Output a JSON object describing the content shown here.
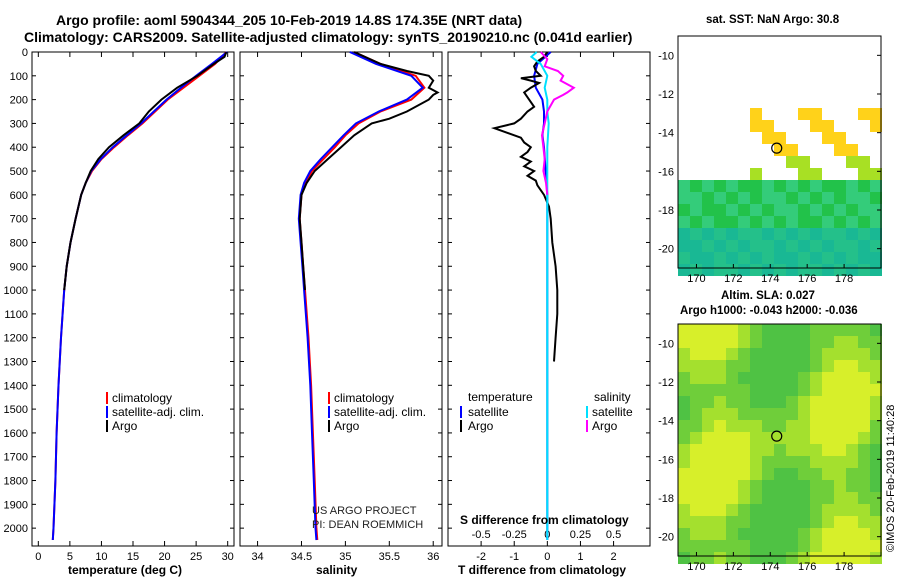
{
  "header": {
    "line1": "Argo profile: aoml 5904344_205 10-Feb-2019 14.8S 174.35E (NRT data)",
    "line2": "Climatology: CARS2009. Satellite-adjusted climatology: synTS_20190210.nc (0.041d earlier)"
  },
  "colors": {
    "climatology": "#ff0000",
    "satellite": "#0000ff",
    "argo": "#000000",
    "salinity_satellite": "#00e0ff",
    "salinity_argo": "#ff00ff"
  },
  "chart_data": [
    {
      "type": "line",
      "panel": "temperature",
      "xlabel": "temperature (deg C)",
      "ylabel": "",
      "xlim": [
        -1,
        31
      ],
      "ylim": [
        2075,
        0
      ],
      "xticks": [
        0,
        5,
        10,
        15,
        20,
        25,
        30
      ],
      "yticks": [
        0,
        100,
        200,
        300,
        400,
        500,
        600,
        700,
        800,
        900,
        1000,
        1100,
        1200,
        1300,
        1400,
        1500,
        1600,
        1700,
        1800,
        1900,
        2000
      ],
      "legend": [
        "climatology",
        "satellite-adj. clim.",
        "Argo"
      ],
      "series": [
        {
          "name": "climatology",
          "color": "#ff0000",
          "depth": [
            0,
            50,
            100,
            150,
            200,
            250,
            300,
            350,
            400,
            450,
            500,
            550,
            600,
            700,
            800,
            900,
            1000,
            1200,
            1400,
            1600,
            1800,
            2000,
            2050
          ],
          "values": [
            29.8,
            28.0,
            25.5,
            23.0,
            20.5,
            18.5,
            16.5,
            14.2,
            12.0,
            10.0,
            8.5,
            7.5,
            6.8,
            5.9,
            5.1,
            4.5,
            4.1,
            3.6,
            3.2,
            2.9,
            2.7,
            2.4,
            2.3
          ]
        },
        {
          "name": "satellite-adj. clim.",
          "color": "#0000ff",
          "depth": [
            0,
            50,
            100,
            150,
            200,
            250,
            300,
            350,
            400,
            450,
            500,
            550,
            600,
            700,
            800,
            900,
            1000,
            1200,
            1400,
            1600,
            1800,
            2000,
            2050
          ],
          "values": [
            29.9,
            27.5,
            25.0,
            22.6,
            20.3,
            18.3,
            16.3,
            14.0,
            11.8,
            9.9,
            8.4,
            7.5,
            6.8,
            5.9,
            5.1,
            4.5,
            4.1,
            3.6,
            3.2,
            2.9,
            2.7,
            2.4,
            2.3
          ]
        },
        {
          "name": "Argo",
          "color": "#000000",
          "depth": [
            0,
            20,
            50,
            100,
            150,
            200,
            250,
            300,
            350,
            400,
            450,
            500,
            550,
            600,
            700,
            800,
            900,
            1000
          ],
          "values": [
            29.8,
            29.5,
            27.8,
            25.2,
            22.0,
            19.5,
            17.5,
            16.0,
            13.5,
            11.2,
            9.5,
            8.3,
            7.5,
            6.8,
            5.9,
            5.1,
            4.5,
            4.1
          ]
        }
      ]
    },
    {
      "type": "line",
      "panel": "salinity",
      "xlabel": "salinity",
      "ylabel": "",
      "xlim": [
        33.8,
        36.1
      ],
      "ylim": [
        2075,
        0
      ],
      "xticks": [
        34,
        34.5,
        35,
        35.5,
        36
      ],
      "xticklabels": [
        "34",
        "34.5",
        "35",
        "35.5",
        "36"
      ],
      "legend": [
        "climatology",
        "satellite-adj. clim.",
        "Argo"
      ],
      "annotations": [
        "US ARGO PROJECT",
        "PI: DEAN ROEMMICH"
      ],
      "series": [
        {
          "name": "climatology",
          "color": "#ff0000",
          "depth": [
            0,
            50,
            100,
            150,
            200,
            250,
            300,
            350,
            400,
            450,
            500,
            550,
            600,
            700,
            800,
            900,
            1000,
            1200,
            1400,
            1600,
            1800,
            2000,
            2050
          ],
          "values": [
            35.1,
            35.4,
            35.8,
            35.9,
            35.75,
            35.4,
            35.15,
            35.0,
            34.88,
            34.75,
            34.62,
            34.55,
            34.5,
            34.48,
            34.5,
            34.52,
            34.54,
            34.58,
            34.61,
            34.63,
            34.65,
            34.67,
            34.68
          ]
        },
        {
          "name": "satellite-adj. clim.",
          "color": "#0000ff",
          "depth": [
            0,
            50,
            100,
            150,
            200,
            250,
            300,
            350,
            400,
            450,
            500,
            550,
            600,
            700,
            800,
            900,
            1000,
            1200,
            1400,
            1600,
            1800,
            2000,
            2050
          ],
          "values": [
            35.05,
            35.35,
            35.75,
            35.88,
            35.7,
            35.38,
            35.12,
            34.98,
            34.85,
            34.72,
            34.6,
            34.53,
            34.49,
            34.47,
            34.49,
            34.51,
            34.53,
            34.57,
            34.6,
            34.62,
            34.64,
            34.66,
            34.67
          ]
        },
        {
          "name": "Argo",
          "color": "#000000",
          "depth": [
            0,
            50,
            80,
            100,
            120,
            150,
            170,
            180,
            200,
            250,
            280,
            300,
            350,
            400,
            450,
            500,
            550,
            600,
            700,
            800,
            900,
            1000
          ],
          "values": [
            35.1,
            35.4,
            35.7,
            35.95,
            36.0,
            35.95,
            36.05,
            36.0,
            35.95,
            35.7,
            35.5,
            35.3,
            35.1,
            34.95,
            34.8,
            34.65,
            34.56,
            34.5,
            34.48,
            34.5,
            34.52,
            34.54
          ]
        }
      ]
    },
    {
      "type": "line",
      "panel": "differences",
      "xlabel": "T difference from climatology",
      "top_xlabel": "S difference from climatology",
      "xlim": [
        -3,
        3.1
      ],
      "ylim": [
        2075,
        0
      ],
      "xticks": [
        -2,
        -1,
        0,
        1,
        2
      ],
      "top_xticks": [
        -0.5,
        -0.25,
        0,
        0.25,
        0.5
      ],
      "top_xticklabels": [
        "-0.5",
        "-0.25",
        "0",
        "0.25",
        "0.5"
      ],
      "legend": {
        "temperature_title": "temperature",
        "salinity_title": "salinity",
        "satellite": "satellite",
        "argo": "Argo"
      },
      "series": [
        {
          "name": "T satellite",
          "color": "#0000ff",
          "depth": [
            0,
            50,
            100,
            150,
            200,
            250,
            300,
            350,
            400,
            500,
            600,
            800,
            1000,
            2050
          ],
          "values": [
            0.1,
            -0.3,
            -0.4,
            -0.35,
            -0.15,
            -0.1,
            -0.1,
            -0.15,
            -0.1,
            -0.05,
            0.0,
            0.0,
            0.0,
            0.0
          ]
        },
        {
          "name": "T Argo",
          "color": "#000000",
          "depth": [
            0,
            20,
            40,
            60,
            80,
            100,
            110,
            120,
            130,
            150,
            170,
            200,
            230,
            250,
            280,
            300,
            320,
            340,
            360,
            380,
            400,
            420,
            440,
            460,
            480,
            500,
            520,
            540,
            560,
            580,
            600,
            650,
            700,
            800,
            900,
            1000,
            1100,
            1200,
            1300
          ],
          "values": [
            0.0,
            -0.1,
            -0.3,
            -0.4,
            -0.35,
            -0.2,
            -0.8,
            -0.5,
            -0.25,
            -0.5,
            -0.7,
            -0.55,
            -0.4,
            -0.6,
            -0.8,
            -1.0,
            -1.6,
            -1.2,
            -0.8,
            -0.7,
            -0.5,
            -0.6,
            -0.8,
            -0.5,
            -0.7,
            -0.4,
            -0.6,
            -0.35,
            -0.3,
            -0.2,
            -0.1,
            0.05,
            0.1,
            0.15,
            0.25,
            0.3,
            0.3,
            0.25,
            0.2
          ]
        },
        {
          "name": "S satellite",
          "color": "#00e0ff",
          "depth": [
            0,
            20,
            50,
            100,
            150,
            200,
            250,
            300,
            400,
            600,
            1000,
            2050
          ],
          "values": [
            -0.08,
            -0.12,
            -0.05,
            0.0,
            -0.02,
            0.0,
            0.0,
            0.01,
            0.0,
            0.0,
            0.0,
            0.0
          ]
        },
        {
          "name": "S Argo",
          "color": "#ff00ff",
          "depth": [
            0,
            30,
            60,
            80,
            100,
            120,
            150,
            170,
            180,
            200,
            250,
            300,
            350,
            400,
            450,
            500,
            550,
            600
          ],
          "values": [
            -0.05,
            0.0,
            -0.02,
            0.08,
            0.12,
            0.1,
            0.2,
            0.15,
            0.12,
            0.05,
            0.0,
            -0.02,
            -0.04,
            -0.03,
            -0.02,
            -0.03,
            -0.01,
            0.0
          ]
        }
      ]
    },
    {
      "type": "heatmap",
      "panel": "sst_map",
      "title": "sat. SST: NaN Argo: 30.8",
      "xlim": [
        169,
        180
      ],
      "ylim": [
        -21,
        -9
      ],
      "xticks": [
        170,
        172,
        174,
        176,
        178
      ],
      "yticks": [
        -10,
        -12,
        -14,
        -16,
        -18,
        -20
      ],
      "argo_position": [
        174.35,
        -14.8
      ]
    },
    {
      "type": "heatmap",
      "panel": "sla_map",
      "title": "Altim. SLA: 0.027",
      "subtitle": "Argo h1000: -0.043 h2000: -0.036",
      "xlim": [
        169,
        180
      ],
      "ylim": [
        -21,
        -9
      ],
      "xticks": [
        170,
        172,
        174,
        176,
        178
      ],
      "yticks": [
        -10,
        -12,
        -14,
        -16,
        -18,
        -20
      ],
      "argo_position": [
        174.35,
        -14.8
      ]
    }
  ],
  "footer": {
    "stamp": "©IMOS 20-Feb-2019 11:40:28"
  }
}
